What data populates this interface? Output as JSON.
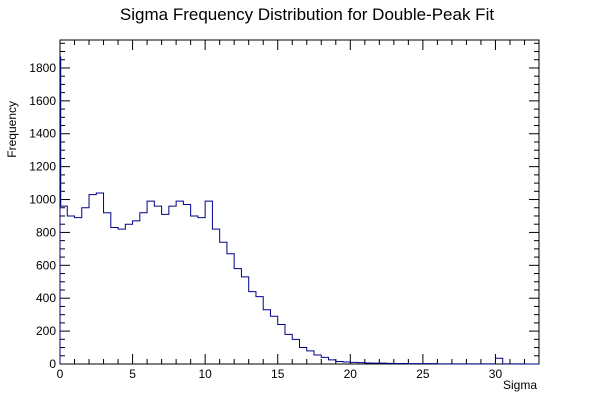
{
  "chart_data": {
    "type": "bar",
    "title": "Sigma Frequency Distribution for Double-Peak Fit",
    "xlabel": "Sigma",
    "ylabel": "Frequency",
    "xlim": [
      0,
      33
    ],
    "ylim": [
      0,
      1970
    ],
    "bin_width": 0.5,
    "x_ticks": [
      0,
      5,
      10,
      15,
      20,
      25,
      30
    ],
    "y_ticks": [
      0,
      200,
      400,
      600,
      800,
      1000,
      1200,
      1400,
      1600,
      1800
    ],
    "grid": false,
    "line_color": "#00008b",
    "bin_edges_start": [
      0,
      0.5,
      1,
      1.5,
      2,
      2.5,
      3,
      3.5,
      4,
      4.5,
      5,
      5.5,
      6,
      6.5,
      7,
      7.5,
      8,
      8.5,
      9,
      9.5,
      10,
      10.5,
      11,
      11.5,
      12,
      12.5,
      13,
      13.5,
      14,
      14.5,
      15,
      15.5,
      16,
      16.5,
      17,
      17.5,
      18,
      18.5,
      19,
      19.5,
      20,
      20.5,
      21,
      21.5,
      22,
      22.5,
      23,
      23.5,
      24,
      24.5,
      25,
      25.5,
      26,
      26.5,
      27,
      27.5,
      28,
      28.5,
      29,
      29.5,
      30,
      30.5,
      31,
      31.5,
      32,
      32.5
    ],
    "values": [
      960,
      900,
      890,
      950,
      1030,
      1040,
      920,
      830,
      820,
      850,
      870,
      920,
      990,
      960,
      910,
      960,
      990,
      970,
      900,
      890,
      990,
      820,
      740,
      670,
      580,
      530,
      440,
      410,
      330,
      290,
      240,
      180,
      150,
      100,
      80,
      55,
      40,
      25,
      15,
      12,
      10,
      8,
      6,
      5,
      5,
      4,
      3,
      3,
      2,
      2,
      2,
      2,
      1,
      1,
      1,
      1,
      1,
      1,
      1,
      1,
      35,
      1,
      1,
      1,
      0,
      0
    ],
    "first_bin_spike": 1870
  }
}
